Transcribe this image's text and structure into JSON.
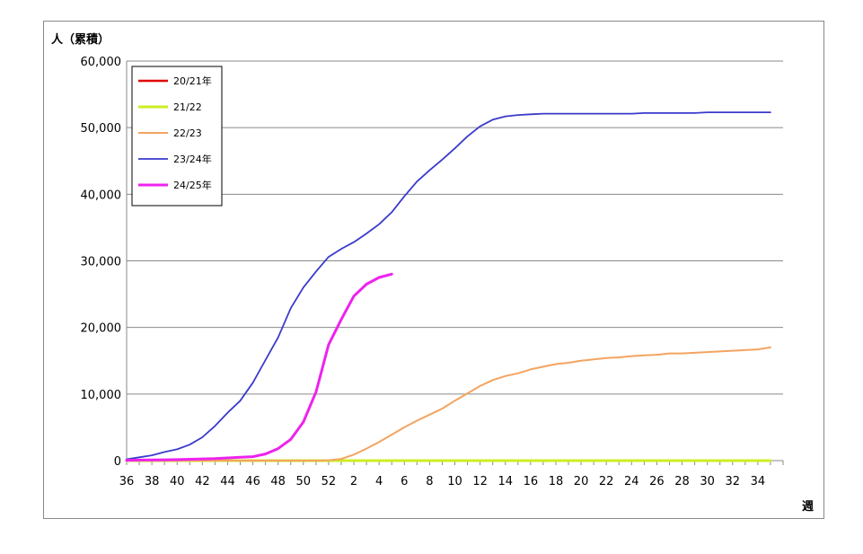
{
  "chart_data": {
    "type": "line",
    "ylabel": "人（累積）",
    "xlabel": "週",
    "ylim": [
      0,
      60000
    ],
    "y_ticks": [
      0,
      10000,
      20000,
      30000,
      40000,
      50000,
      60000
    ],
    "y_tick_labels": [
      "0",
      "10,000",
      "20,000",
      "30,000",
      "40,000",
      "50,000",
      "60,000"
    ],
    "grid": "horizontal",
    "legend_placement": "top-left",
    "x_weeks": [
      36,
      37,
      38,
      39,
      40,
      41,
      42,
      43,
      44,
      45,
      46,
      47,
      48,
      49,
      50,
      51,
      52,
      1,
      2,
      3,
      4,
      5,
      6,
      7,
      8,
      9,
      10,
      11,
      12,
      13,
      14,
      15,
      16,
      17,
      18,
      19,
      20,
      21,
      22,
      23,
      24,
      25,
      26,
      27,
      28,
      29,
      30,
      31,
      32,
      33,
      34,
      35
    ],
    "x_tick_labels": [
      "36",
      "38",
      "40",
      "42",
      "44",
      "46",
      "48",
      "50",
      "52",
      "2",
      "4",
      "6",
      "8",
      "10",
      "12",
      "14",
      "16",
      "18",
      "20",
      "22",
      "24",
      "26",
      "28",
      "30",
      "32",
      "34"
    ],
    "series": [
      {
        "name": "20/21年",
        "color": "#e00000",
        "width": 2.5,
        "values": [
          0,
          0,
          0,
          0,
          0,
          0,
          0,
          0,
          0,
          0,
          0,
          0,
          0,
          0,
          0,
          0,
          0,
          0,
          0,
          0,
          0,
          0,
          0,
          0,
          0,
          0,
          0,
          0,
          0,
          0,
          0,
          0,
          0,
          0,
          0,
          0,
          0,
          0,
          0,
          0,
          0,
          0,
          0,
          0,
          0,
          0,
          0,
          0,
          0,
          0,
          0,
          0
        ]
      },
      {
        "name": "21/22",
        "color": "#ccee22",
        "width": 3,
        "values": [
          0,
          0,
          0,
          0,
          0,
          0,
          0,
          0,
          0,
          0,
          0,
          0,
          0,
          0,
          0,
          0,
          0,
          0,
          0,
          0,
          0,
          0,
          0,
          0,
          0,
          0,
          0,
          0,
          0,
          0,
          0,
          0,
          0,
          0,
          0,
          0,
          0,
          0,
          0,
          0,
          0,
          0,
          0,
          0,
          0,
          0,
          0,
          0,
          0,
          0,
          0,
          0
        ]
      },
      {
        "name": "22/23",
        "color": "#f4a460",
        "width": 2,
        "values": [
          0,
          0,
          0,
          0,
          0,
          0,
          0,
          0,
          0,
          0,
          0,
          0,
          0,
          0,
          0,
          0,
          50,
          250,
          900,
          1800,
          2800,
          3900,
          5000,
          6000,
          6900,
          7800,
          9000,
          10100,
          11200,
          12100,
          12700,
          13100,
          13700,
          14100,
          14500,
          14700,
          15000,
          15200,
          15400,
          15500,
          15700,
          15800,
          15900,
          16100,
          16100,
          16200,
          16300,
          16400,
          16500,
          16600,
          16700,
          17000
        ]
      },
      {
        "name": "23/24年",
        "color": "#3a3acc",
        "width": 1.8,
        "values": [
          200,
          500,
          800,
          1300,
          1700,
          2400,
          3500,
          5200,
          7200,
          9000,
          11700,
          15100,
          18500,
          22900,
          26000,
          28400,
          30600,
          31800,
          32800,
          34100,
          35500,
          37300,
          39700,
          41900,
          43600,
          45200,
          46900,
          48700,
          50200,
          51200,
          51700,
          51900,
          52000,
          52100,
          52100,
          52100,
          52100,
          52100,
          52100,
          52100,
          52100,
          52200,
          52200,
          52200,
          52200,
          52200,
          52300,
          52300,
          52300,
          52300,
          52300,
          52300
        ]
      },
      {
        "name": "24/25年",
        "color": "#ee22ee",
        "width": 3,
        "values": [
          50,
          80,
          100,
          120,
          150,
          200,
          250,
          300,
          400,
          500,
          600,
          1000,
          1800,
          3200,
          5800,
          10300,
          17400,
          21200,
          24700,
          26500,
          27500,
          28000
        ]
      }
    ]
  }
}
